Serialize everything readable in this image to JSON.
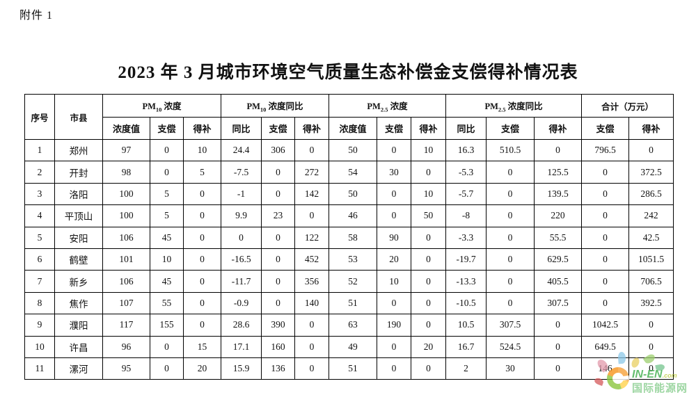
{
  "page": {
    "attachment_label": "附件 1",
    "title": "2023 年 3 月城市环境空气质量生态补偿金支偿得补情况表"
  },
  "table": {
    "header": {
      "index": "序号",
      "city": "市县",
      "groups": [
        {
          "prefix": "PM",
          "sub": "10",
          "suffix": " 浓度"
        },
        {
          "prefix": "PM",
          "sub": "10",
          "suffix": " 浓度同比"
        },
        {
          "prefix": "PM",
          "sub": "2.5",
          "suffix": " 浓度"
        },
        {
          "prefix": "PM",
          "sub": "2.5",
          "suffix": " 浓度同比"
        },
        {
          "label": "合计（万元）"
        }
      ],
      "subs": [
        "浓度值",
        "支偿",
        "得补",
        "同比",
        "支偿",
        "得补",
        "浓度值",
        "支偿",
        "得补",
        "同比",
        "支偿",
        "得补",
        "支偿",
        "得补"
      ]
    },
    "rows": [
      {
        "no": "1",
        "city": "郑州",
        "values": [
          "97",
          "0",
          "10",
          "24.4",
          "306",
          "0",
          "50",
          "0",
          "10",
          "16.3",
          "510.5",
          "0",
          "796.5",
          "0"
        ]
      },
      {
        "no": "2",
        "city": "开封",
        "values": [
          "98",
          "0",
          "5",
          "-7.5",
          "0",
          "272",
          "54",
          "30",
          "0",
          "-5.3",
          "0",
          "125.5",
          "0",
          "372.5"
        ]
      },
      {
        "no": "3",
        "city": "洛阳",
        "values": [
          "100",
          "5",
          "0",
          "-1",
          "0",
          "142",
          "50",
          "0",
          "10",
          "-5.7",
          "0",
          "139.5",
          "0",
          "286.5"
        ]
      },
      {
        "no": "4",
        "city": "平顶山",
        "values": [
          "100",
          "5",
          "0",
          "9.9",
          "23",
          "0",
          "46",
          "0",
          "50",
          "-8",
          "0",
          "220",
          "0",
          "242"
        ]
      },
      {
        "no": "5",
        "city": "安阳",
        "values": [
          "106",
          "45",
          "0",
          "0",
          "0",
          "122",
          "58",
          "90",
          "0",
          "-3.3",
          "0",
          "55.5",
          "0",
          "42.5"
        ]
      },
      {
        "no": "6",
        "city": "鹤壁",
        "values": [
          "101",
          "10",
          "0",
          "-16.5",
          "0",
          "452",
          "53",
          "20",
          "0",
          "-19.7",
          "0",
          "629.5",
          "0",
          "1051.5"
        ]
      },
      {
        "no": "7",
        "city": "新乡",
        "values": [
          "106",
          "45",
          "0",
          "-11.7",
          "0",
          "356",
          "52",
          "10",
          "0",
          "-13.3",
          "0",
          "405.5",
          "0",
          "706.5"
        ]
      },
      {
        "no": "8",
        "city": "焦作",
        "values": [
          "107",
          "55",
          "0",
          "-0.9",
          "0",
          "140",
          "51",
          "0",
          "0",
          "-10.5",
          "0",
          "307.5",
          "0",
          "392.5"
        ]
      },
      {
        "no": "9",
        "city": "濮阳",
        "values": [
          "117",
          "155",
          "0",
          "28.6",
          "390",
          "0",
          "63",
          "190",
          "0",
          "10.5",
          "307.5",
          "0",
          "1042.5",
          "0"
        ]
      },
      {
        "no": "10",
        "city": "许昌",
        "values": [
          "96",
          "0",
          "15",
          "17.1",
          "160",
          "0",
          "49",
          "0",
          "20",
          "16.7",
          "524.5",
          "0",
          "649.5",
          "0"
        ]
      },
      {
        "no": "11",
        "city": "漯河",
        "values": [
          "95",
          "0",
          "20",
          "15.9",
          "136",
          "0",
          "51",
          "0",
          "0",
          "2",
          "30",
          "0",
          "146",
          "0"
        ]
      }
    ]
  },
  "watermark": {
    "brand": "IN-EN",
    "domain_suffix": ".com",
    "subtitle": "国际能源网",
    "brand_color": "#3fae4c"
  }
}
